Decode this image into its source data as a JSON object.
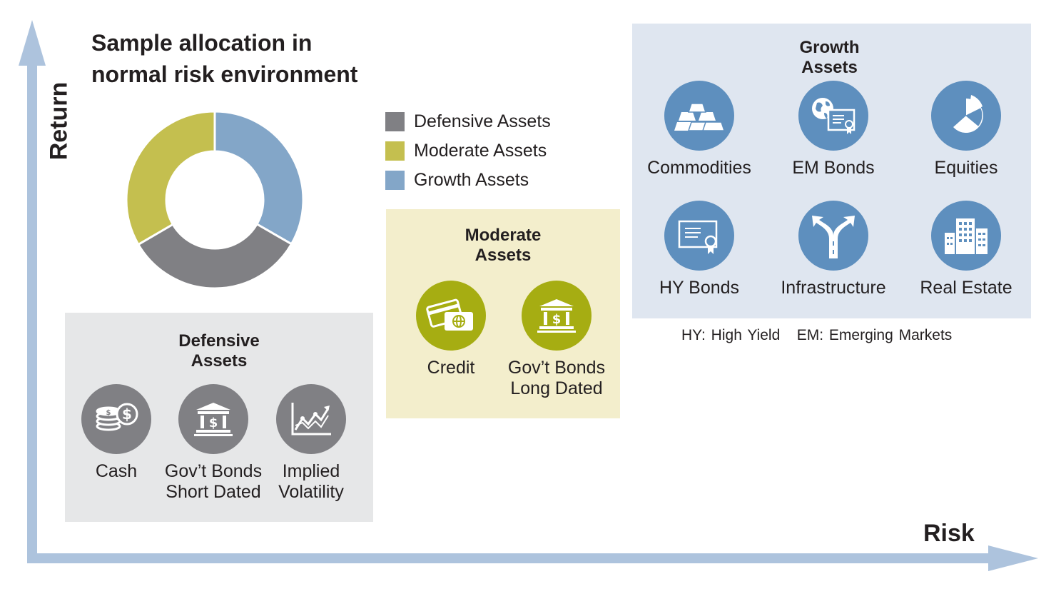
{
  "title": [
    "Sample allocation in",
    "normal risk environment"
  ],
  "axes": {
    "y_label": "Return",
    "x_label": "Risk"
  },
  "colors": {
    "defensive": "#808084",
    "moderate": "#c4bf4f",
    "growth": "#83a6c8",
    "defensive_box": "#e6e7e8",
    "moderate_box": "#f3eecc",
    "growth_box": "#dfe6f0",
    "axis": "#adc3dd",
    "defensive_icon": "#808084",
    "moderate_icon": "#a6ad12",
    "growth_icon": "#5e8fbe"
  },
  "chart_data": {
    "type": "pie",
    "donut": true,
    "categories": [
      "Growth Assets",
      "Defensive Assets",
      "Moderate Assets"
    ],
    "values": [
      33.3,
      33.3,
      33.4
    ],
    "legend": [
      "Defensive Assets",
      "Moderate Assets",
      "Growth Assets"
    ]
  },
  "legend": [
    {
      "label": "Defensive Assets",
      "color": "#808084"
    },
    {
      "label": "Moderate Assets",
      "color": "#c4bf4f"
    },
    {
      "label": "Growth Assets",
      "color": "#83a6c8"
    }
  ],
  "defensive": {
    "title": [
      "Defensive",
      "Assets"
    ],
    "assets": [
      {
        "label": [
          "Cash"
        ],
        "icon": "coins-icon"
      },
      {
        "label": [
          "Gov’t Bonds",
          "Short Dated"
        ],
        "icon": "bank-icon"
      },
      {
        "label": [
          "Implied",
          "Volatility"
        ],
        "icon": "volatility-chart-icon"
      }
    ]
  },
  "moderate": {
    "title": [
      "Moderate",
      "Assets"
    ],
    "assets": [
      {
        "label": [
          "Credit"
        ],
        "icon": "credit-card-icon"
      },
      {
        "label": [
          "Gov’t Bonds",
          "Long Dated"
        ],
        "icon": "bank-icon"
      }
    ]
  },
  "growth": {
    "title": [
      "Growth",
      "Assets"
    ],
    "assets": [
      {
        "label": [
          "Commodities"
        ],
        "icon": "gold-bars-icon"
      },
      {
        "label": [
          "EM Bonds"
        ],
        "icon": "globe-certificate-icon"
      },
      {
        "label": [
          "Equities"
        ],
        "icon": "pie-chart-icon"
      },
      {
        "label": [
          "HY Bonds"
        ],
        "icon": "certificate-icon"
      },
      {
        "label": [
          "Infrastructure"
        ],
        "icon": "road-fork-icon"
      },
      {
        "label": [
          "Real Estate"
        ],
        "icon": "buildings-icon"
      }
    ]
  },
  "footnote": "HY: High Yield   EM: Emerging Markets"
}
